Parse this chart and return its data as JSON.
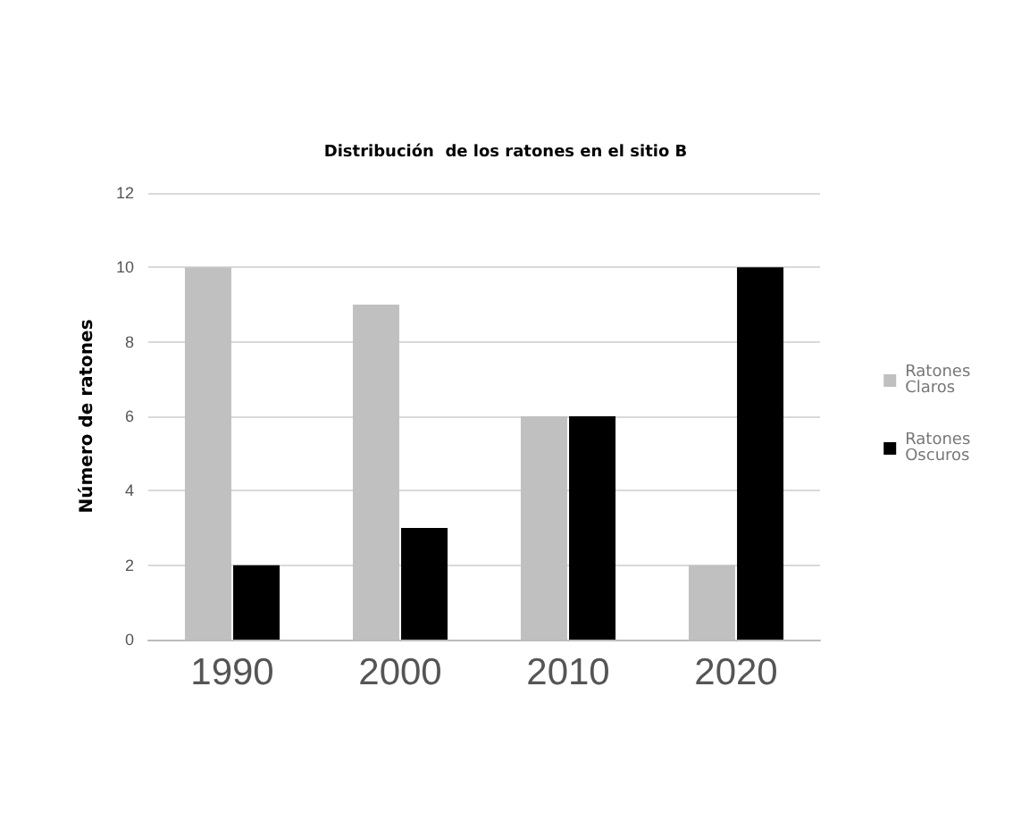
{
  "chart_data": {
    "type": "bar",
    "title": "Distribución  de los ratones en el sitio B",
    "ylabel": "Número de ratones",
    "categories": [
      "1990",
      "2000",
      "2010",
      "2020"
    ],
    "series": [
      {
        "name": "Ratones Claros",
        "color": "#c0c0c0",
        "values": [
          10,
          9,
          6,
          2
        ]
      },
      {
        "name": "Ratones Oscuros",
        "color": "#000000",
        "values": [
          2,
          3,
          6,
          10
        ]
      }
    ],
    "ylim": [
      0,
      12
    ],
    "yticks": [
      0,
      2,
      4,
      6,
      8,
      10,
      12
    ],
    "grid": "y",
    "legend": "right"
  }
}
